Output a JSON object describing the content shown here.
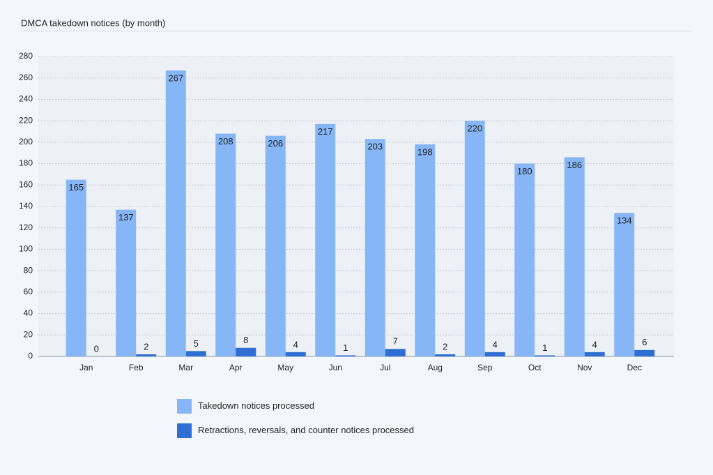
{
  "chart_data": {
    "type": "bar",
    "title": "DMCA takedown notices (by month)",
    "categories": [
      "Jan",
      "Feb",
      "Mar",
      "Apr",
      "May",
      "Jun",
      "Jul",
      "Aug",
      "Sep",
      "Oct",
      "Nov",
      "Dec"
    ],
    "series": [
      {
        "name": "Takedown notices processed",
        "color": "#87b6f6",
        "values": [
          165,
          137,
          267,
          208,
          206,
          217,
          203,
          198,
          220,
          180,
          186,
          134
        ]
      },
      {
        "name": "Retractions, reversals, and counter notices processed",
        "color": "#2f6fd4",
        "values": [
          0,
          2,
          5,
          8,
          4,
          1,
          7,
          2,
          4,
          1,
          4,
          6
        ]
      }
    ],
    "ylim": [
      0,
      280
    ],
    "yticks": [
      0,
      20,
      40,
      60,
      80,
      100,
      120,
      140,
      160,
      180,
      200,
      220,
      240,
      260,
      280
    ],
    "grid": true
  }
}
